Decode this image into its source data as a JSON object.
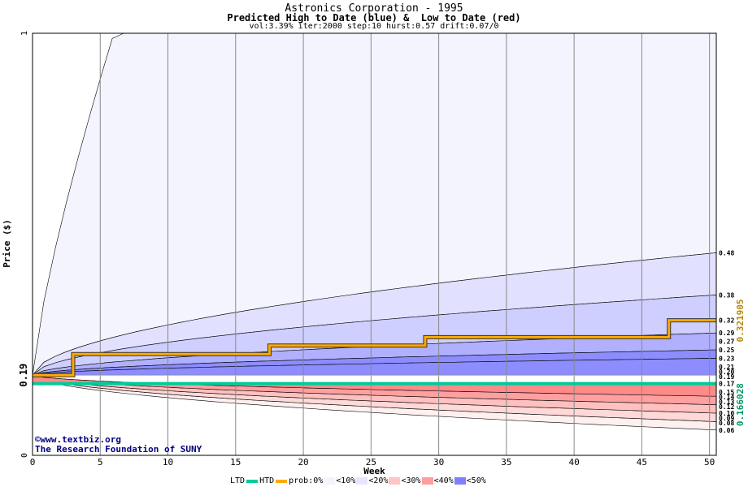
{
  "titles": {
    "main": "Astronics Corporation - 1995",
    "sub": "Predicted High to Date (blue) &  Low to Date (red)",
    "params": "vol:3.39% iter:2000 step:10 hurst:0.57 drift:0.07/0"
  },
  "credits": {
    "site": "©www.textbiz.org",
    "org": "The Research Foundation of SUNY"
  },
  "legend": {
    "ltd": "LTD",
    "htd": "HTD",
    "prob": "prob:0%",
    "b10": "<10%",
    "b20": "<20%",
    "b30": "<30%",
    "b40": "<40%",
    "b50": "<50%"
  },
  "colors": {
    "ltd_line": "#00cc99",
    "htd_line": "#ffaa00",
    "right_label_gold": "#b8860b",
    "right_label_green": "#009966"
  },
  "chart_data": {
    "type": "area",
    "title": "Astronics Corporation - 1995",
    "subtitle": "Predicted High to Date (blue) &  Low to Date (red)",
    "xlabel": "Week",
    "ylabel": "Price ($)",
    "xlim": [
      0,
      50.5
    ],
    "ylim": [
      0,
      1
    ],
    "x_ticks": [
      0,
      5,
      10,
      15,
      20,
      25,
      30,
      35,
      40,
      45,
      50
    ],
    "y_ticks": [
      0,
      0.19,
      1
    ],
    "start_price": 0.19,
    "right_axis_labels": [
      "0.321905",
      "0.166028"
    ],
    "high_to_date_percentiles": [
      {
        "band": "0%",
        "end": 1.0
      },
      {
        "band": "10%",
        "end": 0.48
      },
      {
        "band": "20%",
        "end": 0.38
      },
      {
        "band": "30%",
        "end": 0.29
      },
      {
        "band": "40%",
        "end": 0.25
      },
      {
        "band": "50%",
        "end": 0.23
      }
    ],
    "low_to_date_percentiles": [
      {
        "band": "0%",
        "end": 0.06
      },
      {
        "band": "10%",
        "end": 0.08
      },
      {
        "band": "20%",
        "end": 0.1
      },
      {
        "band": "30%",
        "end": 0.12
      },
      {
        "band": "40%",
        "end": 0.14
      }
    ],
    "end_labels": [
      "0.48",
      "0.38",
      "0.32",
      "0.29",
      "0.27",
      "0.25",
      "0.23",
      "0.21",
      "0.20",
      "0.19",
      "0.17",
      "0.15",
      "0.14",
      "0.13",
      "0.12",
      "0.10",
      "0.09",
      "0.08",
      "0.06"
    ],
    "high_to_date_sample": {
      "x": [
        0,
        2,
        3,
        9,
        15.5,
        17.5,
        29,
        47,
        50.5
      ],
      "y": [
        0.19,
        0.19,
        0.24,
        0.24,
        0.24,
        0.26,
        0.28,
        0.32,
        0.32
      ]
    },
    "low_to_date_sample": {
      "x": [
        0,
        50.5
      ],
      "y": [
        0.17,
        0.17
      ]
    }
  }
}
